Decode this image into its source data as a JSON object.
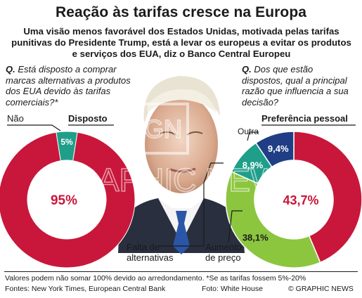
{
  "title": "Reação às tarifas cresce na Europa",
  "subtitle": "Uma visão menos favorável dos Estados Unidas, motivada pelas tarifas punitivas do Presidente Trump, está a levar os europeus a evitar os produtos e serviços dos EUA, diz o Banco Central Europeu",
  "footer": {
    "note": "Valores podem não somar 100% devido ao arredondamento. *Se as tarifas fossem 5%-20%",
    "sources": "Fontes: New York Times, European Central Bank",
    "photo": "Foto: White House",
    "credit": "© GRAPHIC NEWS"
  },
  "watermark": "GRAPHIC NEWS",
  "colors": {
    "red": "#c8173a",
    "teal": "#1f9e8a",
    "blue": "#1f3e85",
    "green": "#8cc63f",
    "pointer": "#1a1a1a"
  },
  "chart_data": [
    {
      "type": "pie",
      "question_prefix": "Q.",
      "question": "Está disposto a comprar marcas alternativas a produtos dos EUA devido às tarifas comerciais?*",
      "categories": [
        "Disposto",
        "Não"
      ],
      "values": [
        5,
        95
      ],
      "value_labels": [
        "5%",
        "95%"
      ]
    },
    {
      "type": "pie",
      "question_prefix": "Q.",
      "question": "Dos que estão dispostos, qual a principal razão que influencia a sua decisão?",
      "categories": [
        "Preferência pessoal",
        "Aumento de preço",
        "Falta de alternativas",
        "Outra"
      ],
      "values": [
        43.7,
        38.1,
        8.9,
        9.4
      ],
      "value_labels": [
        "43,7%",
        "38,1%",
        "8,9%",
        "9,4%"
      ]
    }
  ]
}
